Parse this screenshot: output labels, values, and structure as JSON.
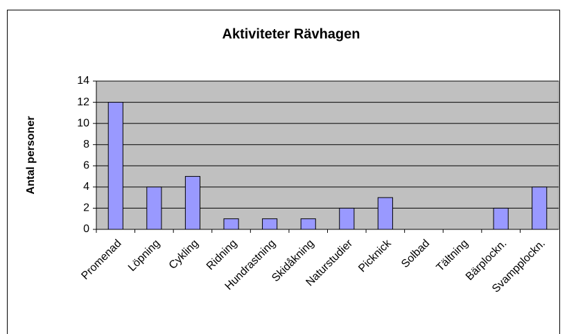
{
  "chart_data": {
    "type": "bar",
    "title": "Aktiviteter Rävhagen",
    "y_label": "Antal personer",
    "categories": [
      "Promenad",
      "Löpning",
      "Cykling",
      "Ridning",
      "Hundrastning",
      "Skidåkning",
      "Naturstudier",
      "Picknick",
      "Solbad",
      "Tältning",
      "Bärplockn.",
      "Svampplockn."
    ],
    "values": [
      12,
      4,
      5,
      1,
      1,
      1,
      2,
      3,
      0,
      0,
      2,
      4
    ],
    "color": "#9999ff",
    "ylim": [
      0,
      14
    ],
    "yticks": [
      0,
      2,
      4,
      6,
      8,
      10,
      12,
      14
    ],
    "grid": true
  }
}
